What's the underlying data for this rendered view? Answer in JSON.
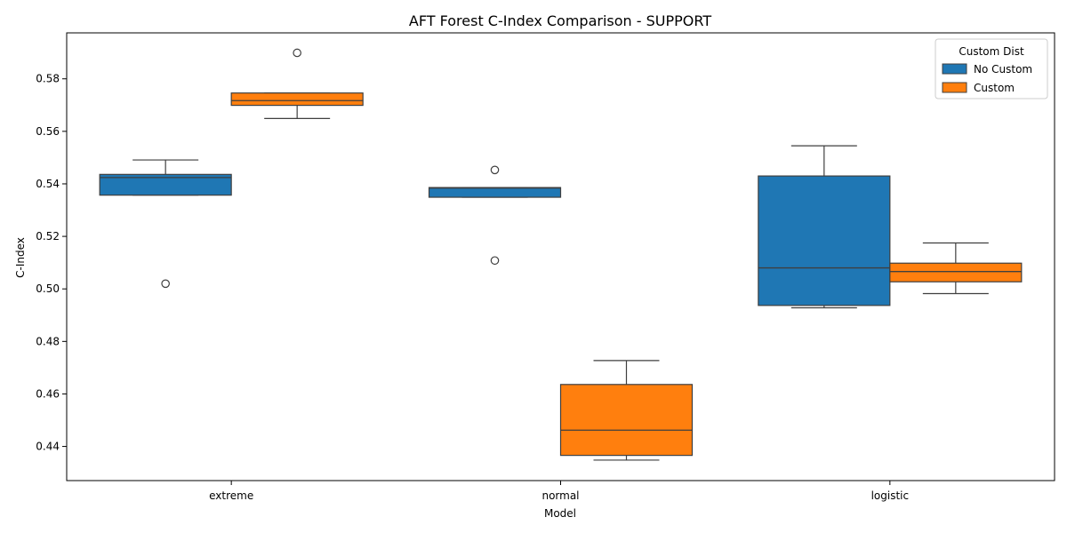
{
  "chart_data": {
    "type": "box",
    "title": "AFT Forest C-Index Comparison - SUPPORT",
    "xlabel": "Model",
    "ylabel": "C-Index",
    "categories": [
      "extreme",
      "normal",
      "logistic"
    ],
    "ylim": [
      0.427,
      0.5975
    ],
    "yticks": [
      0.44,
      0.46,
      0.48,
      0.5,
      0.52,
      0.54,
      0.56,
      0.58
    ],
    "grid": false,
    "legend": {
      "title": "Custom Dist",
      "placement": "top-right",
      "entries": [
        "No Custom",
        "Custom"
      ]
    },
    "series": [
      {
        "name": "No Custom",
        "color": "#1f77b4",
        "boxes": [
          {
            "category": "extreme",
            "whislo": 0.5357,
            "q1": 0.5357,
            "med": 0.5424,
            "q3": 0.5436,
            "whishi": 0.5491,
            "fliers": [
              0.502
            ]
          },
          {
            "category": "normal",
            "whislo": 0.5349,
            "q1": 0.5349,
            "med": 0.5384,
            "q3": 0.5386,
            "whishi": 0.5386,
            "fliers": [
              0.5453,
              0.5108
            ]
          },
          {
            "category": "logistic",
            "whislo": 0.4928,
            "q1": 0.4937,
            "med": 0.508,
            "q3": 0.543,
            "whishi": 0.5545,
            "fliers": []
          }
        ]
      },
      {
        "name": "Custom",
        "color": "#ff7f0e",
        "boxes": [
          {
            "category": "extreme",
            "whislo": 0.5649,
            "q1": 0.5699,
            "med": 0.5717,
            "q3": 0.5746,
            "whishi": 0.5746,
            "fliers": [
              0.5899
            ]
          },
          {
            "category": "normal",
            "whislo": 0.4348,
            "q1": 0.4366,
            "med": 0.4462,
            "q3": 0.4636,
            "whishi": 0.4727,
            "fliers": []
          },
          {
            "category": "logistic",
            "whislo": 0.4982,
            "q1": 0.5027,
            "med": 0.5066,
            "q3": 0.5098,
            "whishi": 0.5175,
            "fliers": []
          }
        ]
      }
    ]
  }
}
